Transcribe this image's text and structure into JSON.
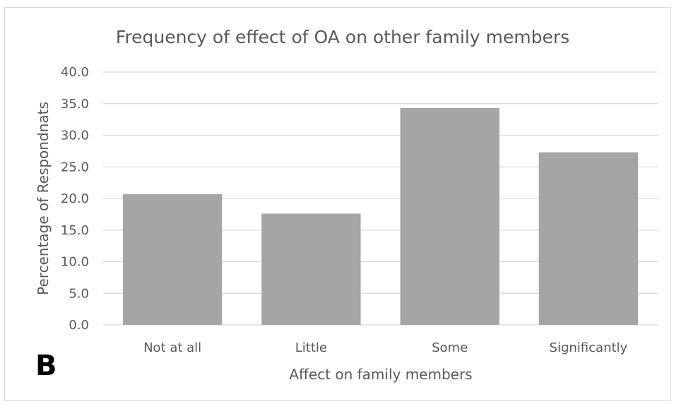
{
  "panel_label": "B",
  "chart_data": {
    "type": "bar",
    "title": "Frequency of effect of OA on other family members",
    "xlabel": "Affect on family members",
    "ylabel": "Percentage of Respondnats",
    "categories": [
      "Not at all",
      "Little",
      "Some",
      "Significantly"
    ],
    "values": [
      20.7,
      17.6,
      34.3,
      27.3
    ],
    "ylim": [
      0,
      40
    ],
    "yticks": [
      "0.0",
      "5.0",
      "10.0",
      "15.0",
      "20.0",
      "25.0",
      "30.0",
      "35.0",
      "40.0"
    ],
    "grid": true,
    "legend": "none",
    "bar_color": "#a5a5a5",
    "grid_color": "#d9d9d9",
    "text_color": "#595959"
  }
}
